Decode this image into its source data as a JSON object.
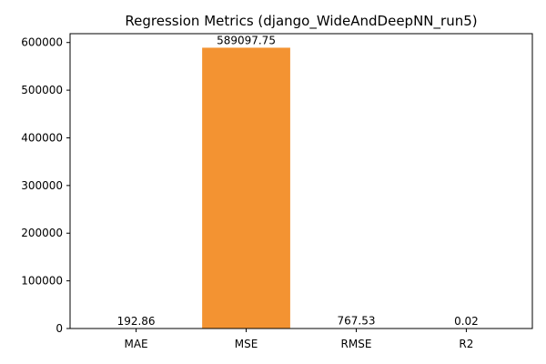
{
  "chart_data": {
    "type": "bar",
    "title": "Regression Metrics (django_WideAndDeepNN_run5)",
    "xlabel": "",
    "ylabel": "",
    "categories": [
      "MAE",
      "MSE",
      "RMSE",
      "R2"
    ],
    "values": [
      192.86,
      589097.75,
      767.53,
      0.02
    ],
    "data_labels": [
      "192.86",
      "589097.75",
      "767.53",
      "0.02"
    ],
    "y_ticks": [
      0,
      100000,
      200000,
      300000,
      400000,
      500000,
      600000
    ],
    "y_tick_labels": [
      "0",
      "100000",
      "200000",
      "300000",
      "400000",
      "500000",
      "600000"
    ],
    "ylim": [
      0,
      618552.64
    ],
    "grid": false,
    "legend": "none",
    "colors": {
      "bar": "#f39332",
      "axis": "#000000"
    }
  }
}
